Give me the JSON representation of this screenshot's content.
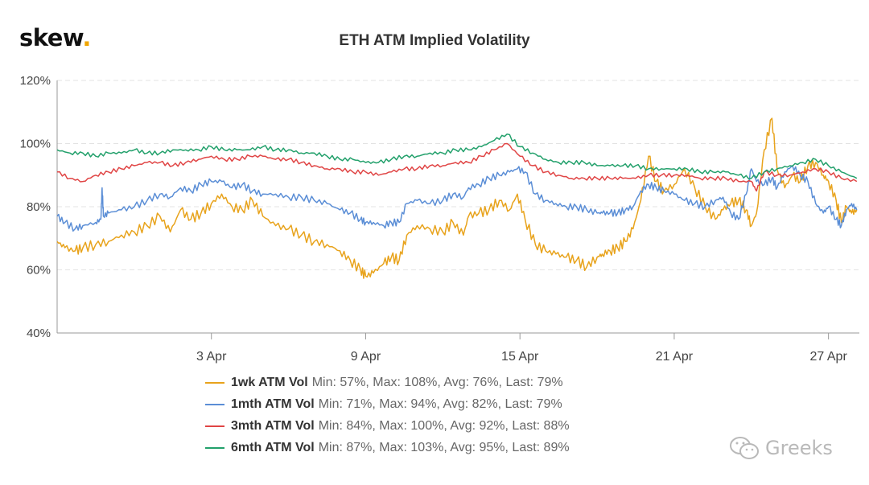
{
  "brand": {
    "logo_text": "skew",
    "logo_dot": "."
  },
  "watermark": {
    "text": "Greeks",
    "icon": "wechat-icon"
  },
  "chart_data": {
    "type": "line",
    "title": "ETH ATM Implied Volatility",
    "xlabel": "",
    "ylabel": "",
    "ylim": [
      40,
      120
    ],
    "y_ticks": [
      "120%",
      "100%",
      "80%",
      "60%",
      "40%"
    ],
    "y_tick_values": [
      120,
      100,
      80,
      60,
      40
    ],
    "x_range_days": [
      0,
      31.2
    ],
    "x_ticks": [
      "3 Apr",
      "9 Apr",
      "15 Apr",
      "21 Apr",
      "27 Apr"
    ],
    "x_tick_days": [
      6,
      12,
      18,
      24,
      30
    ],
    "grid": true,
    "legend_position": "bottom",
    "series": [
      {
        "name": "1wk ATM Vol",
        "stats": "Min: 57%, Max: 108%, Avg: 76%, Last: 79%",
        "color": "#e8a31c",
        "x": [
          0,
          0.3,
          0.7,
          1,
          1.5,
          2,
          2.5,
          3,
          3.5,
          4,
          4.4,
          4.8,
          5.2,
          5.6,
          6,
          6.4,
          6.8,
          7.2,
          7.6,
          8,
          8.5,
          9,
          9.5,
          10,
          10.5,
          11,
          11.4,
          11.8,
          12,
          12.3,
          12.7,
          13,
          13.3,
          13.6,
          14,
          14.5,
          15,
          15.4,
          15.8,
          16,
          16.4,
          16.8,
          17.2,
          17.6,
          17.9,
          18.2,
          18.6,
          19,
          19.4,
          19.8,
          20.2,
          20.6,
          21,
          21.2,
          21.5,
          21.8,
          22.1,
          22.4,
          22.7,
          23,
          23.3,
          23.6,
          24,
          24.4,
          24.8,
          25.2,
          25.6,
          25.9,
          26.2,
          26.5,
          26.8,
          27,
          27.2,
          27.5,
          27.8,
          28,
          28.3,
          28.6,
          28.9,
          29.2,
          29.5,
          29.8,
          30,
          30.3,
          30.5,
          30.7,
          30.9,
          31.1
        ],
        "y": [
          69,
          67,
          66,
          67,
          68,
          69,
          71,
          72,
          74,
          77,
          72,
          79,
          76,
          78,
          81,
          84,
          80,
          79,
          82,
          77,
          74,
          73,
          71,
          69,
          68,
          66,
          63,
          60,
          58,
          59,
          62,
          64,
          63,
          71,
          74,
          73,
          72,
          75,
          71,
          77,
          78,
          79,
          82,
          79,
          84,
          76,
          68,
          66,
          65,
          64,
          63,
          61,
          64,
          65,
          66,
          67,
          69,
          73,
          82,
          96,
          88,
          85,
          87,
          92,
          86,
          80,
          76,
          79,
          81,
          82,
          79,
          74,
          78,
          98,
          108,
          92,
          86,
          90,
          88,
          93,
          94,
          90,
          88,
          82,
          75,
          80,
          78,
          79
        ]
      },
      {
        "name": "1mth ATM Vol",
        "stats": "Min: 71%, Max: 94%, Avg: 82%, Last: 79%",
        "color": "#5b8ed6",
        "x": [
          0,
          0.3,
          0.7,
          1,
          1.5,
          1.7,
          1.75,
          1.8,
          2,
          2.5,
          3,
          3.5,
          4,
          4.4,
          4.8,
          5.2,
          5.6,
          6,
          6.4,
          6.8,
          7.2,
          7.6,
          8,
          8.5,
          9,
          9.5,
          10,
          10.5,
          11,
          11.4,
          11.8,
          12,
          12.3,
          12.7,
          13,
          13.3,
          13.6,
          14,
          14.5,
          15,
          15.4,
          15.8,
          16,
          16.4,
          16.8,
          17.2,
          17.6,
          17.9,
          18.2,
          18.6,
          19,
          19.4,
          19.8,
          20.2,
          20.6,
          21,
          21.2,
          21.5,
          21.8,
          22.1,
          22.4,
          22.7,
          23,
          23.3,
          23.6,
          24,
          24.4,
          24.8,
          25.2,
          25.6,
          25.9,
          26.2,
          26.5,
          26.8,
          27,
          27.2,
          27.5,
          27.8,
          28,
          28.3,
          28.6,
          28.9,
          29.2,
          29.5,
          29.8,
          30,
          30.3,
          30.5,
          30.7,
          30.9,
          31.1
        ],
        "y": [
          77,
          75,
          73,
          74,
          75,
          76,
          86,
          77,
          78,
          79,
          80,
          82,
          84,
          83,
          86,
          85,
          87,
          88,
          88,
          86,
          87,
          85,
          84,
          84,
          83,
          83,
          82,
          81,
          79,
          78,
          76,
          75,
          75,
          74,
          75,
          75,
          81,
          82,
          81,
          82,
          84,
          83,
          86,
          87,
          89,
          90,
          91,
          92,
          91,
          84,
          82,
          81,
          80,
          80,
          79,
          78,
          78,
          78,
          78,
          79,
          80,
          85,
          87,
          86,
          85,
          84,
          82,
          81,
          80,
          82,
          83,
          78,
          76,
          84,
          92,
          88,
          87,
          89,
          86,
          91,
          93,
          90,
          88,
          81,
          78,
          80,
          76,
          74,
          79,
          81,
          79
        ]
      },
      {
        "name": "3mth ATM Vol",
        "stats": "Min: 84%, Max: 100%, Avg: 92%, Last: 88%",
        "color": "#e04545",
        "x": [
          0,
          0.5,
          1,
          1.5,
          2,
          2.5,
          3,
          3.5,
          4,
          4.5,
          5,
          5.5,
          6,
          6.5,
          7,
          7.5,
          8,
          8.5,
          9,
          9.5,
          10,
          10.5,
          11,
          11.5,
          12,
          12.5,
          13,
          13.5,
          14,
          14.5,
          15,
          15.5,
          16,
          16.5,
          17,
          17.5,
          18,
          18.5,
          19,
          19.5,
          20,
          20.5,
          21,
          21.5,
          22,
          22.5,
          23,
          23.5,
          24,
          24.5,
          25,
          25.5,
          26,
          26.5,
          27,
          27.2,
          27.5,
          28,
          28.5,
          29,
          29.5,
          30,
          30.5,
          31.1
        ],
        "y": [
          91,
          89,
          88,
          90,
          91,
          92,
          93,
          94,
          94,
          93,
          94,
          95,
          96,
          95,
          95,
          96,
          96,
          95,
          95,
          94,
          93,
          92,
          92,
          91,
          91,
          90,
          91,
          92,
          92,
          93,
          93,
          94,
          94,
          96,
          98,
          100,
          96,
          93,
          91,
          90,
          89,
          89,
          89,
          89,
          89,
          89,
          90,
          90,
          90,
          90,
          89,
          89,
          89,
          88,
          88,
          85,
          91,
          90,
          90,
          91,
          92,
          91,
          89,
          88
        ]
      },
      {
        "name": "6mth ATM Vol",
        "stats": "Min: 87%, Max: 103%, Avg: 95%, Last: 89%",
        "color": "#22a06b",
        "x": [
          0,
          0.5,
          1,
          1.5,
          2,
          2.5,
          3,
          3.5,
          4,
          4.5,
          5,
          5.5,
          6,
          6.5,
          7,
          7.5,
          8,
          8.5,
          9,
          9.5,
          10,
          10.5,
          11,
          11.5,
          12,
          12.5,
          13,
          13.5,
          14,
          14.5,
          15,
          15.5,
          16,
          16.5,
          17,
          17.5,
          18,
          18.5,
          19,
          19.5,
          20,
          20.5,
          21,
          21.5,
          22,
          22.5,
          23,
          23.5,
          24,
          24.5,
          25,
          25.5,
          26,
          26.5,
          27,
          27.5,
          28,
          28.5,
          29,
          29.5,
          30,
          30.5,
          31.1
        ],
        "y": [
          98,
          97,
          97,
          96,
          97,
          97,
          98,
          97,
          97,
          98,
          98,
          98,
          99,
          98,
          98,
          98,
          99,
          98,
          98,
          97,
          97,
          96,
          95,
          95,
          94,
          94,
          95,
          96,
          96,
          97,
          97,
          98,
          98,
          99,
          101,
          103,
          99,
          97,
          95,
          94,
          94,
          94,
          93,
          93,
          93,
          93,
          92,
          92,
          92,
          92,
          91,
          91,
          91,
          90,
          89,
          91,
          92,
          93,
          94,
          95,
          93,
          91,
          89
        ]
      }
    ]
  }
}
